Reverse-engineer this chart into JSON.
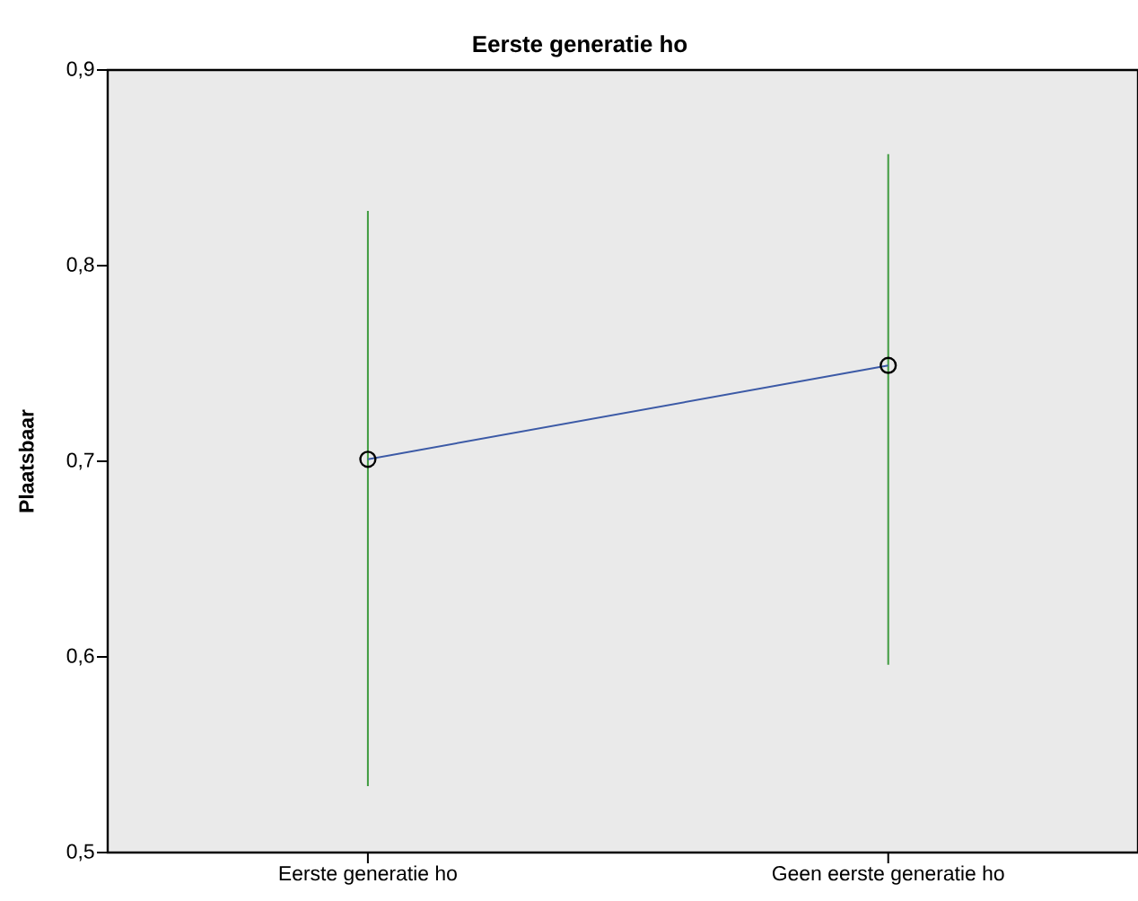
{
  "chart_data": {
    "type": "line",
    "title": "Eerste generatie ho",
    "ylabel": "Plaatsbaar",
    "categories": [
      "Eerste generatie ho",
      "Geen eerste generatie ho"
    ],
    "values": [
      0.701,
      0.749
    ],
    "errors": [
      [
        0.534,
        0.828
      ],
      [
        0.596,
        0.857
      ]
    ],
    "color": "#3c5aa6",
    "marker": "circle",
    "line_style": "solid",
    "ylim": [
      0.5,
      0.9
    ],
    "yticks": [
      {
        "value": 0.5,
        "label": "0,5"
      },
      {
        "value": 0.6,
        "label": "0,6"
      },
      {
        "value": 0.7,
        "label": "0,7"
      },
      {
        "value": 0.8,
        "label": "0,8"
      },
      {
        "value": 0.9,
        "label": "0,9"
      }
    ]
  }
}
